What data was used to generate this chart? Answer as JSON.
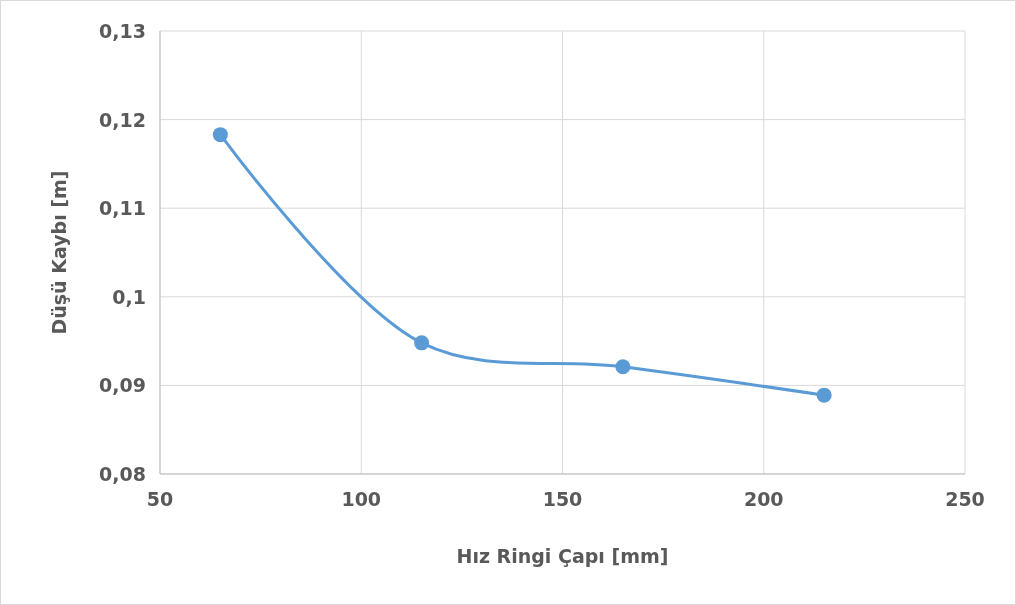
{
  "chart_data": {
    "type": "line",
    "xlabel": "Hız Ringi Çapı [mm]",
    "ylabel": "Düşü Kaybı [m]",
    "x": [
      65,
      115,
      165,
      215
    ],
    "series": [
      {
        "color": "#5b9bd5",
        "values": [
          0.1183,
          0.0948,
          0.0921,
          0.0889
        ]
      }
    ],
    "xlim": [
      50,
      250
    ],
    "xticks": [
      50,
      100,
      150,
      200,
      250
    ],
    "ylim": [
      0.08,
      0.13
    ],
    "yticks": [
      {
        "value": 0.08,
        "label": "0,08"
      },
      {
        "value": 0.09,
        "label": "0,09"
      },
      {
        "value": 0.1,
        "label": "0,1"
      },
      {
        "value": 0.11,
        "label": "0,11"
      },
      {
        "value": 0.12,
        "label": "0,12"
      },
      {
        "value": 0.13,
        "label": "0,13"
      }
    ],
    "grid": true,
    "marker": "circle",
    "line_style": "solid"
  }
}
